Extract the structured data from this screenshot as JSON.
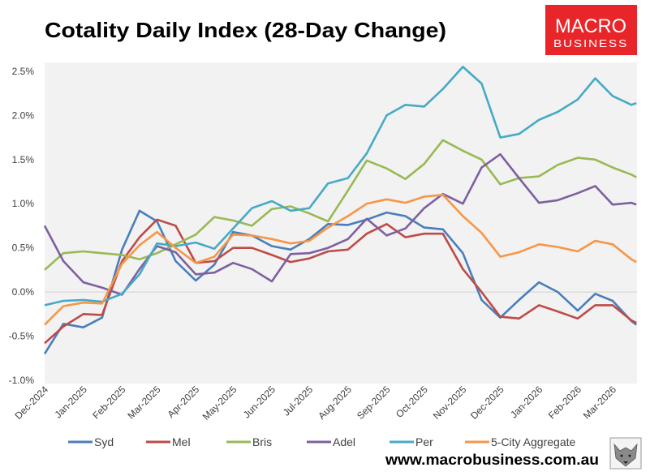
{
  "logo": {
    "line1": "MACRO",
    "line2": "BUSINESS",
    "color": "#e8262a"
  },
  "website": "www.macrobusiness.com.au",
  "chart_data": {
    "type": "line",
    "title": "Cotality Daily Index (28-Day Change)",
    "xlabel": "",
    "ylabel": "",
    "ylim": [
      -1.0,
      2.6
    ],
    "y_ticks": [
      -1.0,
      -0.5,
      0.0,
      0.5,
      1.0,
      1.5,
      2.0,
      2.5
    ],
    "y_tick_labels": [
      "-1.0%",
      "-0.5%",
      "0.0%",
      "0.5%",
      "1.0%",
      "1.5%",
      "2.0%",
      "2.5%"
    ],
    "x_ticks": [
      "2024-12-01",
      "2025-01-01",
      "2025-02-01",
      "2025-03-01",
      "2025-04-01",
      "2025-05-01",
      "2025-06-01",
      "2025-07-01",
      "2025-08-01",
      "2025-09-01",
      "2025-10-01",
      "2025-11-01",
      "2025-12-01",
      "2026-01-01",
      "2026-02-01",
      "2026-03-01"
    ],
    "x_tick_labels": [
      "Dec-2024",
      "Jan-2025",
      "Feb-2025",
      "Mar-2025",
      "Apr-2025",
      "May-2025",
      "Jun-2025",
      "Jul-2025",
      "Aug-2025",
      "Sep-2025",
      "Oct-2025",
      "Nov-2025",
      "Dec-2025",
      "Jan-2026",
      "Feb-2026",
      "Mar-2026"
    ],
    "xlim": [
      "2024-12-01",
      "2026-03-20"
    ],
    "grid": "zero line only",
    "legend": "bottom",
    "x": [
      "2024-12-01",
      "2024-12-16",
      "2025-01-01",
      "2025-01-16",
      "2025-02-01",
      "2025-02-15",
      "2025-03-01",
      "2025-03-16",
      "2025-04-01",
      "2025-04-16",
      "2025-05-01",
      "2025-05-16",
      "2025-06-01",
      "2025-06-16",
      "2025-07-01",
      "2025-07-16",
      "2025-08-01",
      "2025-08-16",
      "2025-09-01",
      "2025-09-16",
      "2025-10-01",
      "2025-10-16",
      "2025-11-01",
      "2025-11-16",
      "2025-12-01",
      "2025-12-16",
      "2026-01-01",
      "2026-01-16",
      "2026-02-01",
      "2026-02-15",
      "2026-03-01",
      "2026-03-16",
      "2026-03-20"
    ],
    "series": [
      {
        "name": "Syd",
        "color": "#4a7ebb",
        "values": [
          -0.7,
          -0.36,
          -0.4,
          -0.29,
          0.48,
          0.92,
          0.8,
          0.35,
          0.13,
          0.31,
          0.68,
          0.64,
          0.52,
          0.48,
          0.6,
          0.77,
          0.76,
          0.82,
          0.9,
          0.86,
          0.73,
          0.71,
          0.44,
          -0.09,
          -0.29,
          -0.09,
          0.11,
          0.0,
          -0.21,
          -0.02,
          -0.1,
          -0.33,
          -0.37
        ]
      },
      {
        "name": "Mel",
        "color": "#be4b48",
        "values": [
          -0.58,
          -0.39,
          -0.25,
          -0.26,
          0.35,
          0.62,
          0.82,
          0.75,
          0.33,
          0.35,
          0.5,
          0.5,
          0.42,
          0.34,
          0.38,
          0.46,
          0.48,
          0.66,
          0.77,
          0.62,
          0.66,
          0.66,
          0.26,
          0.0,
          -0.28,
          -0.3,
          -0.15,
          -0.22,
          -0.3,
          -0.15,
          -0.15,
          -0.32,
          -0.35
        ]
      },
      {
        "name": "Bris",
        "color": "#98b954",
        "values": [
          0.25,
          0.44,
          0.46,
          0.44,
          0.42,
          0.37,
          0.44,
          0.54,
          0.65,
          0.85,
          0.81,
          0.75,
          0.94,
          0.97,
          0.89,
          0.8,
          1.15,
          1.49,
          1.4,
          1.28,
          1.45,
          1.72,
          1.6,
          1.5,
          1.22,
          1.29,
          1.31,
          1.44,
          1.52,
          1.5,
          1.41,
          1.33,
          1.3
        ]
      },
      {
        "name": "Adel",
        "color": "#7d60a0",
        "values": [
          0.75,
          0.35,
          0.11,
          0.05,
          -0.03,
          0.26,
          0.52,
          0.45,
          0.2,
          0.22,
          0.33,
          0.26,
          0.12,
          0.43,
          0.44,
          0.5,
          0.6,
          0.83,
          0.64,
          0.72,
          0.95,
          1.11,
          1.0,
          1.41,
          1.56,
          1.29,
          1.01,
          1.04,
          1.12,
          1.2,
          0.99,
          1.01,
          0.99
        ]
      },
      {
        "name": "Per",
        "color": "#46aac5",
        "values": [
          -0.15,
          -0.1,
          -0.09,
          -0.11,
          -0.02,
          0.2,
          0.55,
          0.52,
          0.56,
          0.49,
          0.72,
          0.95,
          1.03,
          0.92,
          0.95,
          1.23,
          1.29,
          1.57,
          2.0,
          2.12,
          2.1,
          2.3,
          2.55,
          2.36,
          1.75,
          1.79,
          1.95,
          2.04,
          2.18,
          2.42,
          2.22,
          2.12,
          2.14
        ]
      },
      {
        "name": "5-City Aggregate",
        "color": "#f79646",
        "values": [
          -0.37,
          -0.16,
          -0.12,
          -0.13,
          0.32,
          0.53,
          0.68,
          0.5,
          0.33,
          0.4,
          0.65,
          0.64,
          0.6,
          0.55,
          0.58,
          0.73,
          0.86,
          1.0,
          1.05,
          1.01,
          1.08,
          1.1,
          0.86,
          0.67,
          0.4,
          0.45,
          0.54,
          0.51,
          0.46,
          0.58,
          0.54,
          0.37,
          0.34
        ]
      }
    ]
  }
}
